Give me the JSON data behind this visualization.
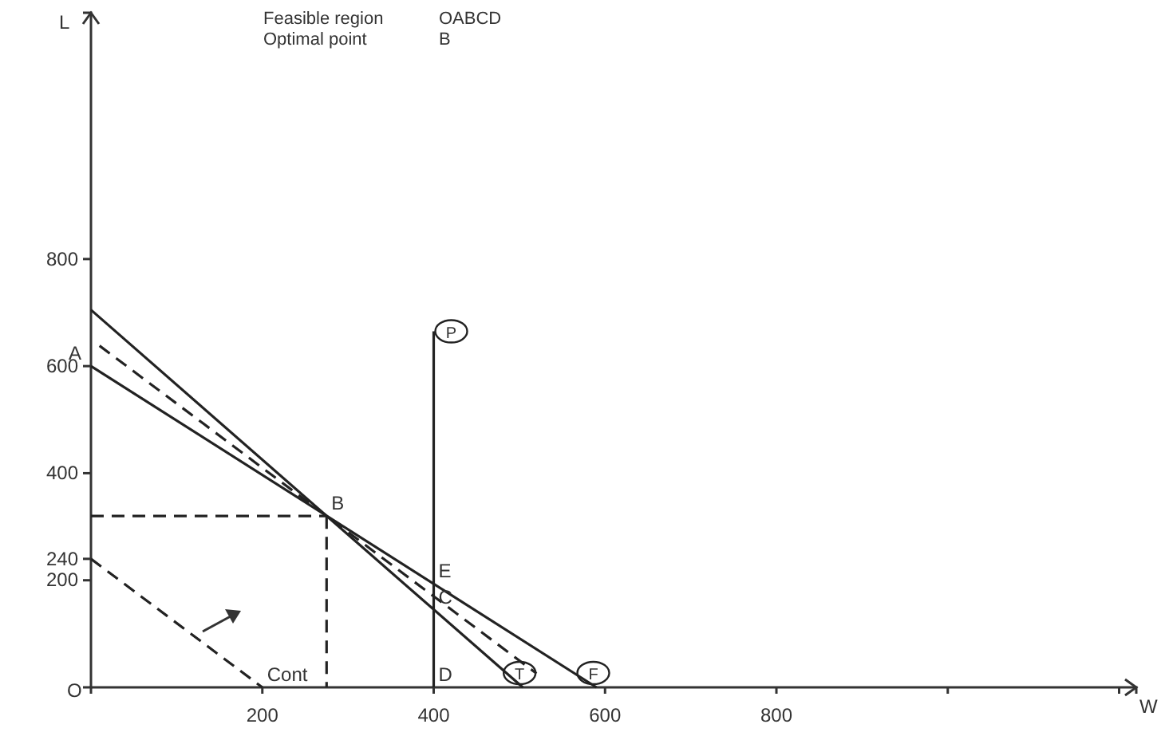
{
  "chart_data": {
    "type": "line",
    "xlabel": "W",
    "ylabel": "L",
    "xlim": [
      0,
      1220
    ],
    "ylim": [
      0,
      1260
    ],
    "xticks": [
      200,
      400,
      600,
      800,
      {
        "value": 1000,
        "label": null
      },
      {
        "value": 1200,
        "label": null
      }
    ],
    "yticks": [
      200,
      240,
      400,
      600,
      800
    ],
    "grid": false,
    "marker": "none",
    "series": [
      {
        "name": "T",
        "color": "#222222",
        "line_style": "solid",
        "x": [
          0,
          504
        ],
        "values": [
          705,
          0
        ]
      },
      {
        "name": "F",
        "color": "#222222",
        "line_style": "solid",
        "x": [
          0,
          590
        ],
        "values": [
          600,
          0
        ]
      },
      {
        "name": "P",
        "color": "#222222",
        "line_style": "solid",
        "x": [
          400,
          400
        ],
        "values": [
          0,
          665
        ]
      },
      {
        "color": "#222222",
        "line_style": "dashed",
        "x": [
          10,
          520
        ],
        "values": [
          638,
          26
        ]
      },
      {
        "color": "#222222",
        "line_style": "dashed",
        "x": [
          0,
          200
        ],
        "values": [
          240,
          0
        ]
      },
      {
        "color": "#222222",
        "line_style": "dashed",
        "x": [
          0,
          275
        ],
        "values": [
          320,
          320
        ]
      },
      {
        "color": "#222222",
        "line_style": "dashed",
        "x": [
          275,
          275
        ],
        "values": [
          320,
          0
        ]
      }
    ],
    "annotations": [
      "Feasible region",
      "OABCD",
      "Optimal point",
      "B",
      "O",
      {
        "text": "A",
        "x": 0,
        "y": 600
      },
      {
        "text": "B",
        "x": 275,
        "y": 320
      },
      {
        "text": "C",
        "x": 400,
        "y": 145
      },
      {
        "text": "D",
        "x": 400,
        "y": 0
      },
      {
        "text": "E",
        "x": 400,
        "y": 193
      },
      {
        "text": "Cont",
        "x": 200,
        "y": 0
      }
    ]
  }
}
